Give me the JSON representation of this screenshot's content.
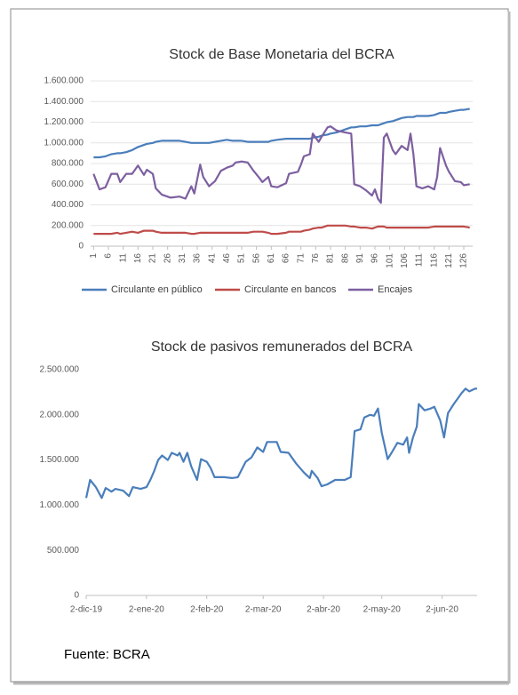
{
  "chart_data": [
    {
      "type": "line",
      "title": "Stock de Base Monetaria del BCRA",
      "x": [
        1,
        3,
        5,
        7,
        9,
        10,
        12,
        14,
        16,
        18,
        19,
        21,
        22,
        24,
        27,
        30,
        32,
        34,
        35,
        37,
        38,
        40,
        42,
        44,
        46,
        48,
        49,
        51,
        53,
        55,
        57,
        58,
        60,
        61,
        63,
        66,
        67,
        70,
        71,
        72,
        74,
        75,
        77,
        78,
        80,
        81,
        83,
        86,
        88,
        89,
        91,
        93,
        95,
        96,
        97,
        98,
        99,
        100,
        102,
        103,
        105,
        107,
        108,
        109,
        110,
        112,
        114,
        116,
        117,
        118,
        120,
        121,
        123,
        125,
        126,
        128
      ],
      "xlim": [
        0,
        129
      ],
      "xticks": [
        1,
        6,
        11,
        16,
        21,
        26,
        31,
        36,
        41,
        46,
        51,
        56,
        61,
        66,
        71,
        76,
        81,
        86,
        91,
        96,
        101,
        106,
        111,
        116,
        121,
        126
      ],
      "ylim": [
        0,
        1600000
      ],
      "yticks": [
        0,
        {
          "value": 200000,
          "label": "200.000"
        },
        {
          "value": 400000,
          "label": "400.000"
        },
        {
          "value": 600000,
          "label": "600.000"
        },
        {
          "value": 800000,
          "label": "800.000"
        },
        {
          "value": 1000000,
          "label": "1.000.000"
        },
        {
          "value": 1200000,
          "label": "1.200.000"
        },
        {
          "value": 1400000,
          "label": "1.400.000"
        },
        {
          "value": 1600000,
          "label": "1.600.000"
        }
      ],
      "grid": true,
      "legend": "bottom",
      "series": [
        {
          "name": "Circulante en público",
          "color": "#4a7ebb",
          "values": [
            860000,
            860000,
            870000,
            890000,
            900000,
            900000,
            910000,
            930000,
            960000,
            980000,
            990000,
            1000000,
            1010000,
            1020000,
            1020000,
            1020000,
            1010000,
            1000000,
            1000000,
            1000000,
            1000000,
            1000000,
            1010000,
            1020000,
            1030000,
            1020000,
            1020000,
            1020000,
            1010000,
            1010000,
            1010000,
            1010000,
            1010000,
            1020000,
            1030000,
            1040000,
            1040000,
            1040000,
            1040000,
            1040000,
            1040000,
            1050000,
            1060000,
            1070000,
            1080000,
            1090000,
            1100000,
            1130000,
            1150000,
            1150000,
            1160000,
            1160000,
            1170000,
            1170000,
            1170000,
            1180000,
            1190000,
            1200000,
            1210000,
            1220000,
            1240000,
            1250000,
            1250000,
            1250000,
            1260000,
            1260000,
            1260000,
            1270000,
            1280000,
            1290000,
            1290000,
            1300000,
            1310000,
            1320000,
            1320000,
            1330000
          ]
        },
        {
          "name": "Circulante en bancos",
          "color": "#be4b48",
          "values": [
            120000,
            120000,
            120000,
            120000,
            130000,
            120000,
            130000,
            140000,
            130000,
            150000,
            150000,
            150000,
            140000,
            130000,
            130000,
            130000,
            130000,
            120000,
            120000,
            130000,
            130000,
            130000,
            130000,
            130000,
            130000,
            130000,
            130000,
            130000,
            130000,
            140000,
            140000,
            140000,
            130000,
            120000,
            120000,
            130000,
            140000,
            140000,
            140000,
            150000,
            160000,
            170000,
            180000,
            180000,
            200000,
            200000,
            200000,
            200000,
            190000,
            190000,
            180000,
            180000,
            170000,
            180000,
            190000,
            190000,
            190000,
            180000,
            180000,
            180000,
            180000,
            180000,
            180000,
            180000,
            180000,
            180000,
            180000,
            190000,
            190000,
            190000,
            190000,
            190000,
            190000,
            190000,
            190000,
            180000
          ]
        },
        {
          "name": "Encajes",
          "color": "#7d5fa0",
          "values": [
            700000,
            550000,
            570000,
            700000,
            700000,
            620000,
            700000,
            700000,
            780000,
            690000,
            740000,
            700000,
            560000,
            500000,
            470000,
            480000,
            460000,
            580000,
            510000,
            790000,
            670000,
            580000,
            630000,
            730000,
            760000,
            780000,
            810000,
            820000,
            810000,
            730000,
            660000,
            620000,
            670000,
            580000,
            570000,
            610000,
            700000,
            720000,
            790000,
            870000,
            890000,
            1090000,
            1010000,
            1060000,
            1150000,
            1160000,
            1120000,
            1100000,
            1090000,
            600000,
            580000,
            540000,
            490000,
            550000,
            460000,
            420000,
            1050000,
            1090000,
            930000,
            890000,
            970000,
            930000,
            1090000,
            890000,
            580000,
            560000,
            580000,
            550000,
            670000,
            950000,
            780000,
            720000,
            630000,
            620000,
            590000,
            600000
          ]
        }
      ]
    },
    {
      "type": "line",
      "title": "Stock de pasivos remunerados del BCRA",
      "x": [
        "2019-12-02",
        "2019-12-04",
        "2019-12-07",
        "2019-12-10",
        "2019-12-12",
        "2019-12-15",
        "2019-12-17",
        "2019-12-21",
        "2019-12-24",
        "2019-12-26",
        "2019-12-30",
        "2020-01-02",
        "2020-01-04",
        "2020-01-06",
        "2020-01-08",
        "2020-01-10",
        "2020-01-13",
        "2020-01-15",
        "2020-01-18",
        "2020-01-19",
        "2020-01-21",
        "2020-01-23",
        "2020-01-25",
        "2020-01-28",
        "2020-01-30",
        "2020-02-02",
        "2020-02-04",
        "2020-02-06",
        "2020-02-11",
        "2020-02-15",
        "2020-02-18",
        "2020-02-22",
        "2020-02-25",
        "2020-02-28",
        "2020-03-02",
        "2020-03-04",
        "2020-03-09",
        "2020-03-11",
        "2020-03-15",
        "2020-03-19",
        "2020-03-23",
        "2020-03-26",
        "2020-03-27",
        "2020-03-30",
        "2020-04-01",
        "2020-04-04",
        "2020-04-08",
        "2020-04-13",
        "2020-04-16",
        "2020-04-18",
        "2020-04-21",
        "2020-04-23",
        "2020-04-26",
        "2020-04-28",
        "2020-04-30",
        "2020-05-02",
        "2020-05-05",
        "2020-05-07",
        "2020-05-10",
        "2020-05-13",
        "2020-05-15",
        "2020-05-16",
        "2020-05-18",
        "2020-05-20",
        "2020-05-21",
        "2020-05-24",
        "2020-05-27",
        "2020-05-29",
        "2020-06-01",
        "2020-06-03",
        "2020-06-05",
        "2020-06-08",
        "2020-06-12",
        "2020-06-14",
        "2020-06-16",
        "2020-06-19",
        "2020-06-20"
      ],
      "xlim": [
        "2019-12-02",
        "2020-06-20"
      ],
      "xticks": [
        {
          "value": "2019-12-02",
          "label": "2-dic-19"
        },
        {
          "value": "2020-01-02",
          "label": "2-ene-20"
        },
        {
          "value": "2020-02-02",
          "label": "2-feb-20"
        },
        {
          "value": "2020-03-02",
          "label": "2-mar-20"
        },
        {
          "value": "2020-04-02",
          "label": "2-abr-20"
        },
        {
          "value": "2020-05-02",
          "label": "2-may-20"
        },
        {
          "value": "2020-06-02",
          "label": "2-jun-20"
        }
      ],
      "ylim": [
        0,
        2500000
      ],
      "yticks": [
        0,
        {
          "value": 500000,
          "label": "500.000"
        },
        {
          "value": 1000000,
          "label": "1.000.000"
        },
        {
          "value": 1500000,
          "label": "1.500.000"
        },
        {
          "value": 2000000,
          "label": "2.000.000"
        },
        {
          "value": 2500000,
          "label": "2.500.000"
        }
      ],
      "grid": false,
      "series": [
        {
          "color": "#4a7ebb",
          "values": [
            1080000,
            1280000,
            1200000,
            1080000,
            1190000,
            1150000,
            1180000,
            1160000,
            1100000,
            1200000,
            1180000,
            1200000,
            1280000,
            1380000,
            1500000,
            1550000,
            1500000,
            1580000,
            1550000,
            1580000,
            1480000,
            1580000,
            1430000,
            1280000,
            1510000,
            1480000,
            1410000,
            1310000,
            1310000,
            1300000,
            1310000,
            1480000,
            1530000,
            1640000,
            1590000,
            1700000,
            1700000,
            1590000,
            1580000,
            1460000,
            1360000,
            1300000,
            1380000,
            1300000,
            1210000,
            1230000,
            1280000,
            1280000,
            1310000,
            1820000,
            1840000,
            1970000,
            2000000,
            1990000,
            2070000,
            1800000,
            1510000,
            1580000,
            1690000,
            1670000,
            1750000,
            1580000,
            1750000,
            1870000,
            2120000,
            2050000,
            2070000,
            2090000,
            1940000,
            1750000,
            2020000,
            2120000,
            2240000,
            2290000,
            2260000,
            2290000,
            2290000
          ]
        }
      ]
    }
  ],
  "source": "Fuente: BCRA"
}
